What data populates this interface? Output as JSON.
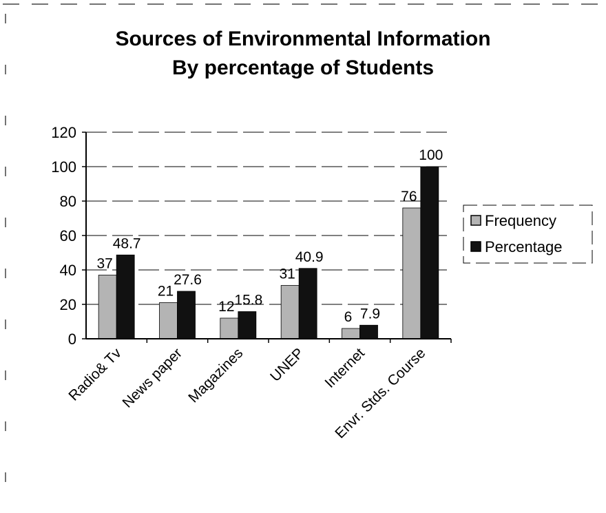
{
  "chart_data": {
    "type": "bar",
    "title": [
      "Sources of Environmental Information",
      "By percentage of Students"
    ],
    "categories": [
      "Radio& Tv",
      "News paper",
      "Magazines",
      "UNEP",
      "Internet",
      "Envr. Stds. Course"
    ],
    "series": [
      {
        "name": "Frequency",
        "color": "#b4b4b4",
        "values": [
          37,
          21,
          12,
          31,
          6,
          76
        ]
      },
      {
        "name": "Percentage",
        "color": "#111111",
        "values": [
          48.7,
          27.6,
          15.8,
          40.9,
          7.9,
          100
        ]
      }
    ],
    "ylim": [
      0,
      120
    ],
    "yticks": [
      0,
      20,
      40,
      60,
      80,
      100,
      120
    ],
    "grid": true,
    "legend": "right"
  }
}
